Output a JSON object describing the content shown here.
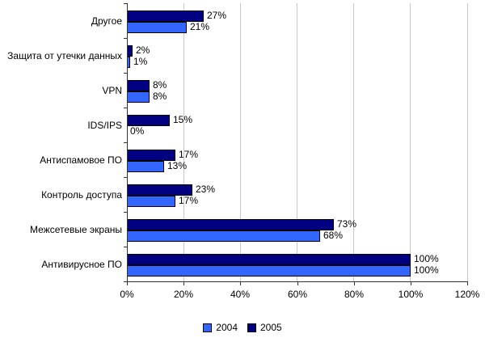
{
  "chart_data": {
    "type": "bar",
    "orientation": "horizontal",
    "title": "",
    "xlabel": "",
    "ylabel": "",
    "categories": [
      "Другое",
      "Защита от утечки данных",
      "VPN",
      "IDS/IPS",
      "Антиспамовое ПО",
      "Контроль доступа",
      "Межсетевые экраны",
      "Антивирусное ПО"
    ],
    "series": [
      {
        "name": "2005",
        "color": "#000080",
        "values": [
          27,
          2,
          8,
          15,
          17,
          23,
          73,
          100
        ],
        "labels": [
          "27%",
          "2%",
          "8%",
          "15%",
          "17%",
          "23%",
          "73%",
          "100%"
        ]
      },
      {
        "name": "2004",
        "color": "#3366FF",
        "values": [
          21,
          1,
          8,
          0,
          13,
          17,
          68,
          100
        ],
        "labels": [
          "21%",
          "1%",
          "8%",
          "0%",
          "13%",
          "17%",
          "68%",
          "100%"
        ]
      }
    ],
    "series_order_top_to_bottom": [
      "2005",
      "2004"
    ],
    "xlim": [
      0,
      120
    ],
    "x_tick_step": 20,
    "x_tick_labels": [
      "0%",
      "20%",
      "40%",
      "60%",
      "80%",
      "100%",
      "120%"
    ],
    "grid": true,
    "legend_position": "bottom"
  },
  "legend": {
    "items": [
      {
        "label": "2004",
        "color": "#3366FF"
      },
      {
        "label": "2005",
        "color": "#000080"
      }
    ]
  },
  "colors": {
    "background": "#FFFFFF",
    "gridline": "#C9C9C9",
    "axis": "#333333",
    "bar_border": "#000000",
    "bar_2004": "#3366FF",
    "bar_2005": "#000080",
    "text": "#000000"
  }
}
